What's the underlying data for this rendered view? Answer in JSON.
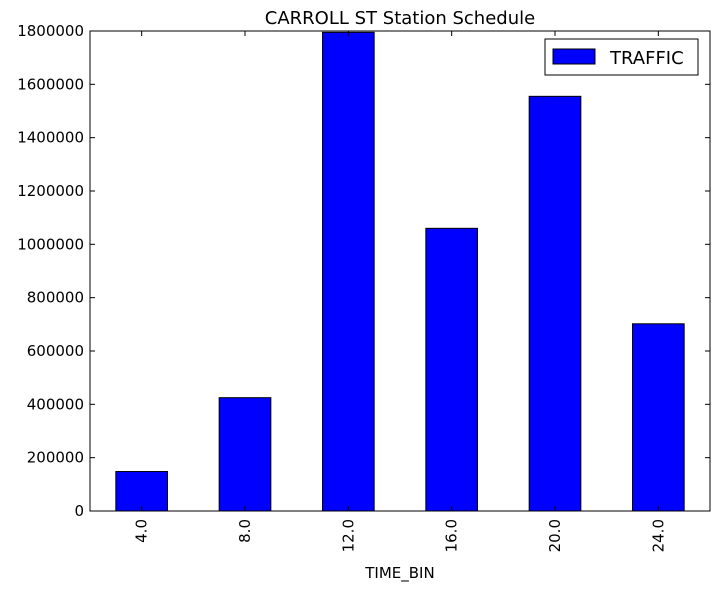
{
  "chart_data": {
    "type": "bar",
    "title": "CARROLL ST Station Schedule",
    "xlabel": "TIME_BIN",
    "ylabel": "",
    "categories": [
      "4.0",
      "8.0",
      "12.0",
      "16.0",
      "20.0",
      "24.0"
    ],
    "series": [
      {
        "name": "TRAFFIC",
        "values": [
          148000,
          425000,
          1795000,
          1060000,
          1555000,
          702000
        ],
        "color": "#0000ff"
      }
    ],
    "ylim": [
      0,
      1800000
    ],
    "yticks": [
      0,
      200000,
      400000,
      600000,
      800000,
      1000000,
      1200000,
      1400000,
      1600000,
      1800000
    ],
    "ytick_labels": [
      "0",
      "200000",
      "400000",
      "600000",
      "800000",
      "1000000",
      "1200000",
      "1400000",
      "1600000",
      "1800000"
    ],
    "grid": false,
    "legend_position": "top-right",
    "x_tick_rotation": "vertical"
  }
}
